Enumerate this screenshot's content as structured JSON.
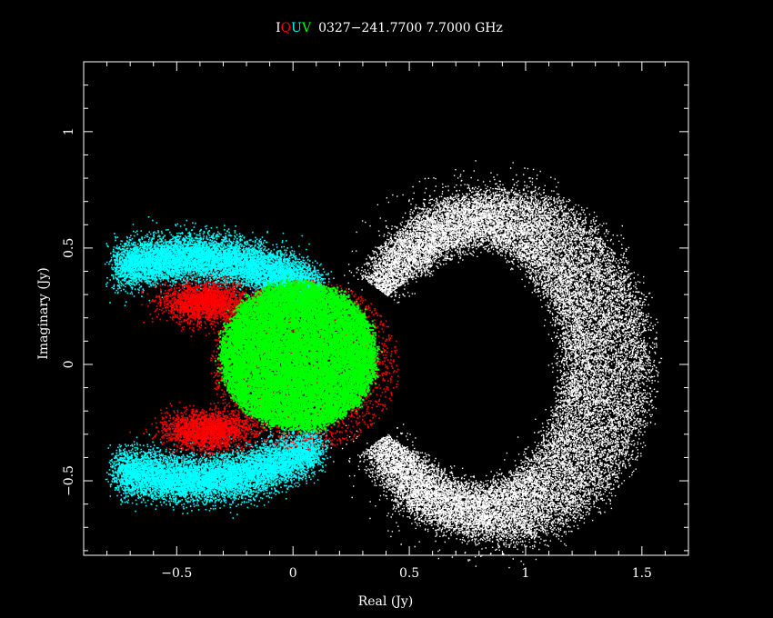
{
  "title": {
    "stokes": [
      {
        "text": "I",
        "color": "#ffffff"
      },
      {
        "text": "Q",
        "color": "#ff0000"
      },
      {
        "text": "U",
        "color": "#00ffff"
      },
      {
        "text": "V",
        "color": "#00ff00"
      }
    ],
    "source_text": "0327−241.7700 7.7000 GHz"
  },
  "chart_data": {
    "type": "scatter",
    "xlabel": "Real (Jy)",
    "ylabel": "Imaginary (Jy)",
    "xlim": [
      -0.9,
      1.7
    ],
    "ylim": [
      -0.82,
      1.3
    ],
    "xticks": [
      -0.5,
      0,
      0.5,
      1,
      1.5
    ],
    "xtick_labels": [
      "−0.5",
      "0",
      "0.5",
      "1",
      "1.5"
    ],
    "yticks": [
      -0.5,
      0,
      0.5,
      1
    ],
    "ytick_labels": [
      "−0.5",
      "0",
      "0.5",
      "1"
    ],
    "grid": false,
    "background": "#000000",
    "series": [
      {
        "name": "I",
        "color": "#ffffff",
        "shape": "crescent",
        "center": [
          0.83,
          0.0
        ],
        "radius": 0.55,
        "spread": 0.12,
        "gap_center": [
          0.58,
          0.0
        ],
        "gap_radius": 0.33,
        "angle_range_deg": [
          -150,
          150
        ]
      },
      {
        "name": "U",
        "color": "#00ffff",
        "shape": "two_arcs",
        "lobes": [
          [
            -0.33,
            0.42
          ],
          [
            -0.33,
            -0.45
          ]
        ],
        "extent_x": [
          -0.8,
          0.2
        ],
        "extent_y_upper": [
          0.25,
          0.58
        ],
        "extent_y_lower": [
          -0.6,
          -0.22
        ]
      },
      {
        "name": "Q",
        "color": "#ff0000",
        "shape": "blobs",
        "lobes": [
          [
            -0.38,
            0.27
          ],
          [
            -0.37,
            -0.28
          ]
        ],
        "spread": [
          0.09,
          0.04
        ],
        "halo_center": [
          0.05,
          0.0
        ],
        "halo_radius": 0.38
      },
      {
        "name": "V",
        "color": "#00ff00",
        "shape": "disk",
        "center": [
          0.02,
          0.04
        ],
        "radius": 0.33
      }
    ]
  }
}
